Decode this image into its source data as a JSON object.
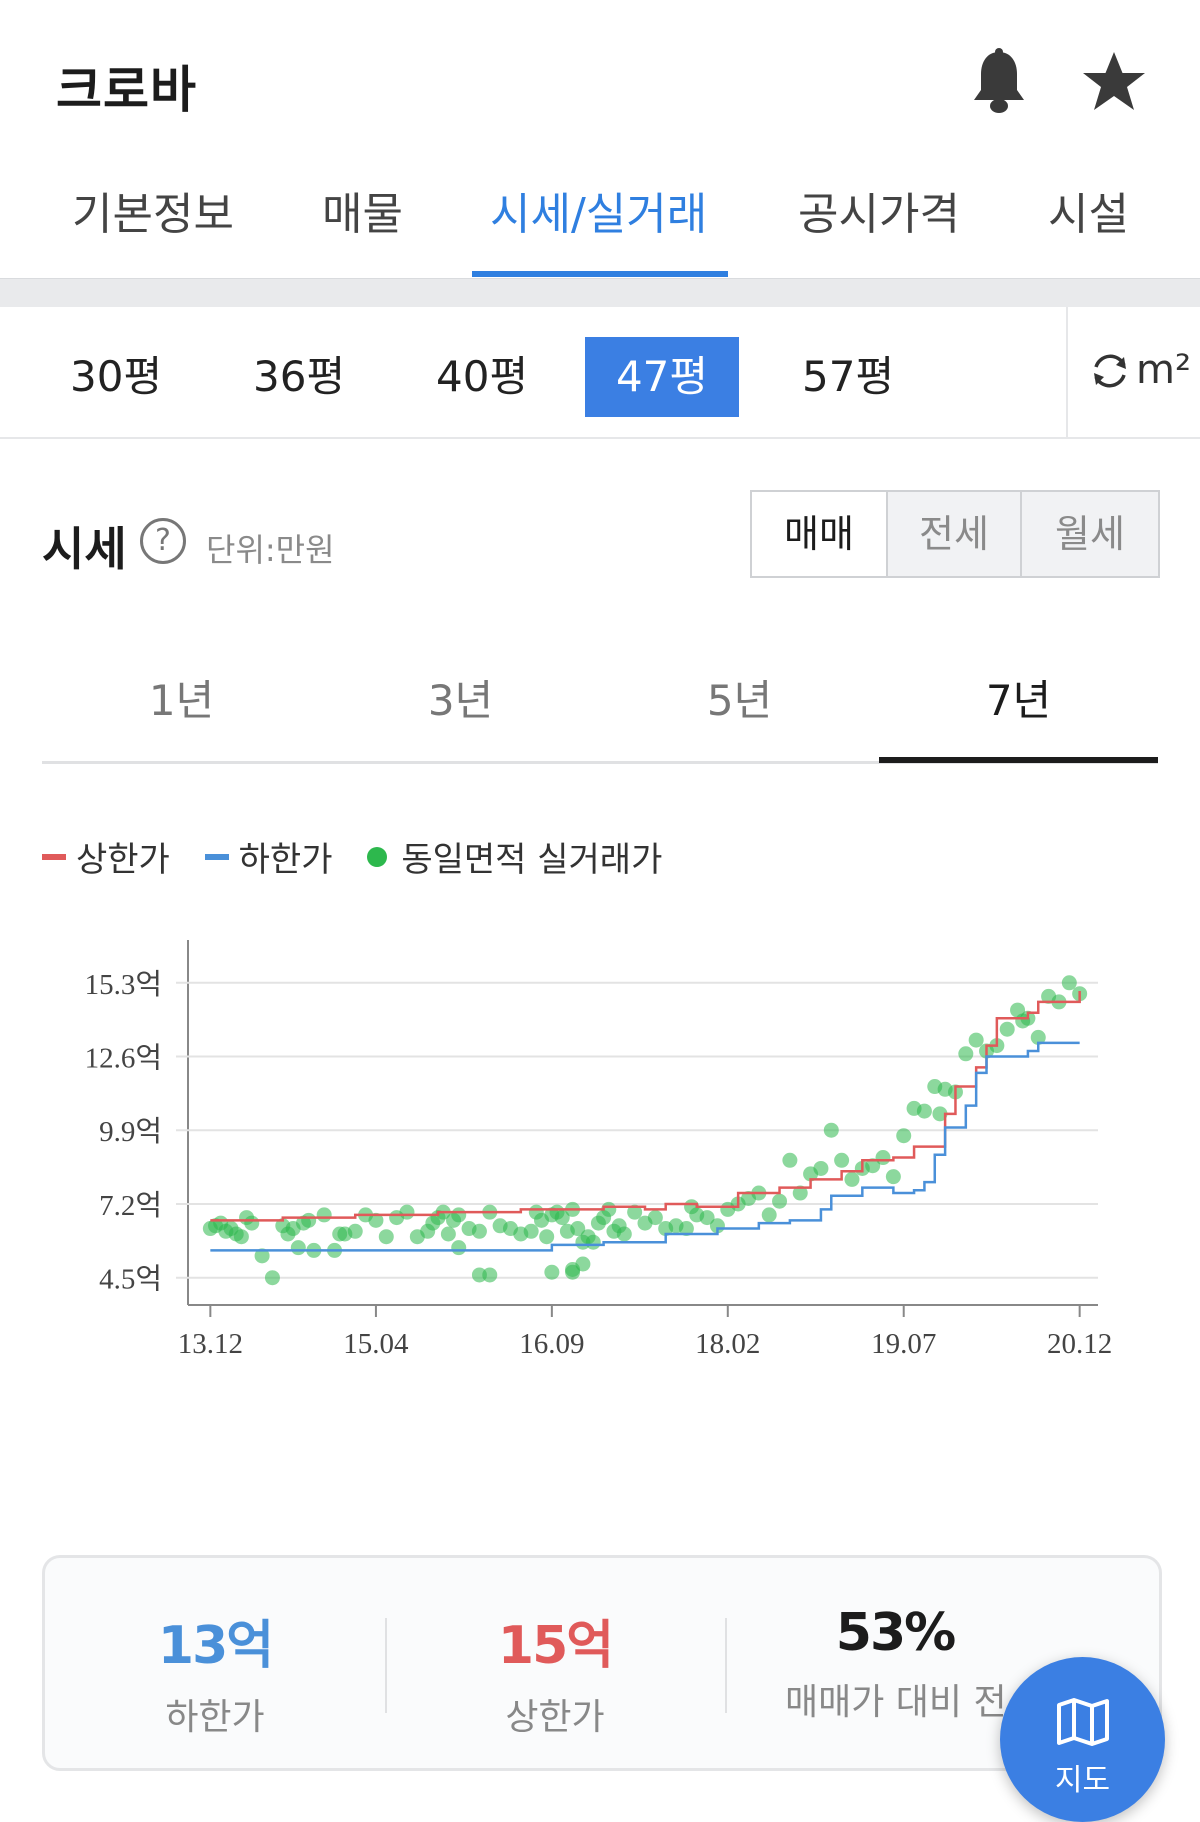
{
  "header": {
    "title": "크로바",
    "icons": [
      "bell-icon",
      "star-icon"
    ]
  },
  "tabs": [
    {
      "label": "기본정보",
      "active": false
    },
    {
      "label": "매물",
      "active": false
    },
    {
      "label": "시세/실거래",
      "active": true
    },
    {
      "label": "공시가격",
      "active": false
    },
    {
      "label": "시설",
      "active": false
    }
  ],
  "sizes": [
    {
      "label": "30평",
      "active": false
    },
    {
      "label": "36평",
      "active": false
    },
    {
      "label": "40평",
      "active": false
    },
    {
      "label": "47평",
      "active": true
    },
    {
      "label": "57평",
      "active": false
    }
  ],
  "unit_toggle": {
    "icon": "refresh-icon",
    "label": "m²"
  },
  "price_section": {
    "title": "시세",
    "unit": "단위:만원",
    "trade_types": [
      {
        "label": "매매",
        "active": true
      },
      {
        "label": "전세",
        "active": false
      },
      {
        "label": "월세",
        "active": false
      }
    ],
    "periods": [
      {
        "label": "1년",
        "active": false
      },
      {
        "label": "3년",
        "active": false
      },
      {
        "label": "5년",
        "active": false
      },
      {
        "label": "7년",
        "active": true
      }
    ]
  },
  "legend": [
    {
      "label": "상한가",
      "marker": "line",
      "color": "#e05a5a"
    },
    {
      "label": "하한가",
      "marker": "line",
      "color": "#4a90d9"
    },
    {
      "label": "동일면적 실거래가",
      "marker": "dot",
      "color": "#2db84d"
    }
  ],
  "chart_data": {
    "type": "line",
    "y_ticks": [
      {
        "value": 4.5,
        "label": "4.5억"
      },
      {
        "value": 7.2,
        "label": "7.2억"
      },
      {
        "value": 9.9,
        "label": "9.9억"
      },
      {
        "value": 12.6,
        "label": "12.6억"
      },
      {
        "value": 15.3,
        "label": "15.3억"
      }
    ],
    "x_ticks": [
      "13.12",
      "15.04",
      "16.09",
      "18.02",
      "19.07",
      "20.12"
    ],
    "x_tick_months": [
      0,
      16,
      33,
      50,
      67,
      84
    ],
    "ylim": [
      3.5,
      16.5
    ],
    "xlim": [
      -1,
      85
    ],
    "series": [
      {
        "name": "상한가",
        "color": "#e05a5a",
        "steps": [
          [
            0,
            6.6
          ],
          [
            7,
            6.7
          ],
          [
            14,
            6.8
          ],
          [
            22,
            6.9
          ],
          [
            30,
            7.0
          ],
          [
            38,
            7.1
          ],
          [
            42,
            7.0
          ],
          [
            44,
            7.2
          ],
          [
            47,
            7.1
          ],
          [
            51,
            7.6
          ],
          [
            55,
            7.8
          ],
          [
            58,
            8.1
          ],
          [
            61,
            8.4
          ],
          [
            63,
            8.8
          ],
          [
            66,
            8.9
          ],
          [
            68,
            9.3
          ],
          [
            71,
            10.5
          ],
          [
            72,
            11.5
          ],
          [
            74,
            12.2
          ],
          [
            75,
            13.0
          ],
          [
            76,
            14.0
          ],
          [
            78,
            14.0
          ],
          [
            79,
            14.2
          ],
          [
            80,
            14.6
          ],
          [
            82,
            14.6
          ],
          [
            84,
            15.0
          ]
        ]
      },
      {
        "name": "하한가",
        "color": "#4a90d9",
        "steps": [
          [
            0,
            5.5
          ],
          [
            30,
            5.5
          ],
          [
            33,
            5.7
          ],
          [
            38,
            5.8
          ],
          [
            44,
            6.1
          ],
          [
            49,
            6.3
          ],
          [
            53,
            6.5
          ],
          [
            56,
            6.6
          ],
          [
            59,
            7.0
          ],
          [
            60,
            7.5
          ],
          [
            63,
            7.8
          ],
          [
            66,
            7.6
          ],
          [
            68,
            7.7
          ],
          [
            69,
            8.0
          ],
          [
            70,
            9.0
          ],
          [
            71,
            10.0
          ],
          [
            73,
            10.8
          ],
          [
            74,
            12.0
          ],
          [
            75,
            12.6
          ],
          [
            76,
            12.6
          ],
          [
            78,
            12.6
          ],
          [
            79,
            12.8
          ],
          [
            80,
            13.1
          ],
          [
            84,
            13.1
          ]
        ]
      }
    ],
    "points": [
      [
        0,
        6.3
      ],
      [
        0.5,
        6.4
      ],
      [
        1,
        6.5
      ],
      [
        1.5,
        6.2
      ],
      [
        2,
        6.3
      ],
      [
        2.5,
        6.1
      ],
      [
        3,
        6.0
      ],
      [
        3.5,
        6.7
      ],
      [
        4,
        6.5
      ],
      [
        5,
        5.3
      ],
      [
        6,
        4.5
      ],
      [
        7,
        6.4
      ],
      [
        7.5,
        6.1
      ],
      [
        8,
        6.3
      ],
      [
        8.5,
        5.6
      ],
      [
        9,
        6.5
      ],
      [
        9.5,
        6.6
      ],
      [
        10,
        5.5
      ],
      [
        11,
        6.8
      ],
      [
        12,
        5.5
      ],
      [
        12.5,
        6.1
      ],
      [
        13,
        6.1
      ],
      [
        14,
        6.2
      ],
      [
        15,
        6.8
      ],
      [
        16,
        6.6
      ],
      [
        17,
        6.0
      ],
      [
        18,
        6.7
      ],
      [
        19,
        6.9
      ],
      [
        20,
        6.0
      ],
      [
        21,
        6.2
      ],
      [
        21.5,
        6.5
      ],
      [
        22,
        6.7
      ],
      [
        22.5,
        6.9
      ],
      [
        23,
        6.1
      ],
      [
        23.5,
        6.6
      ],
      [
        24,
        6.8
      ],
      [
        25,
        6.3
      ],
      [
        26,
        6.2
      ],
      [
        27,
        6.9
      ],
      [
        28,
        6.4
      ],
      [
        29,
        6.3
      ],
      [
        30,
        6.1
      ],
      [
        31,
        6.2
      ],
      [
        31.5,
        6.9
      ],
      [
        32,
        6.6
      ],
      [
        32.5,
        6.0
      ],
      [
        33,
        6.8
      ],
      [
        33.5,
        6.9
      ],
      [
        34,
        6.7
      ],
      [
        34.5,
        6.2
      ],
      [
        35,
        7.0
      ],
      [
        35.5,
        6.3
      ],
      [
        36,
        5.8
      ],
      [
        36.5,
        6.0
      ],
      [
        37,
        5.8
      ],
      [
        37.5,
        6.5
      ],
      [
        38,
        6.7
      ],
      [
        38.5,
        7.0
      ],
      [
        39,
        6.2
      ],
      [
        39.5,
        6.4
      ],
      [
        40,
        6.1
      ],
      [
        41,
        6.9
      ],
      [
        42,
        6.5
      ],
      [
        43,
        6.7
      ],
      [
        44,
        6.3
      ],
      [
        45,
        6.4
      ],
      [
        46,
        6.3
      ],
      [
        46.5,
        7.1
      ],
      [
        47,
        6.8
      ],
      [
        48,
        6.7
      ],
      [
        49,
        6.4
      ],
      [
        50,
        7.0
      ],
      [
        51,
        7.2
      ],
      [
        52,
        7.4
      ],
      [
        53,
        7.6
      ],
      [
        54,
        6.8
      ],
      [
        55,
        7.3
      ],
      [
        56,
        8.8
      ],
      [
        57,
        7.6
      ],
      [
        58,
        8.3
      ],
      [
        59,
        8.5
      ],
      [
        60,
        9.9
      ],
      [
        61,
        8.8
      ],
      [
        62,
        8.1
      ],
      [
        63,
        8.5
      ],
      [
        64,
        8.6
      ],
      [
        65,
        8.9
      ],
      [
        66,
        8.2
      ],
      [
        67,
        9.7
      ],
      [
        68,
        10.7
      ],
      [
        69,
        10.6
      ],
      [
        70,
        11.5
      ],
      [
        70.5,
        10.5
      ],
      [
        71,
        11.4
      ],
      [
        72,
        11.3
      ],
      [
        73,
        12.7
      ],
      [
        74,
        13.2
      ],
      [
        75,
        12.8
      ],
      [
        76,
        13.0
      ],
      [
        77,
        13.6
      ],
      [
        78,
        14.3
      ],
      [
        78.5,
        13.9
      ],
      [
        79,
        14.0
      ],
      [
        80,
        13.3
      ],
      [
        81,
        14.8
      ],
      [
        82,
        14.6
      ],
      [
        83,
        15.3
      ],
      [
        84,
        14.9
      ],
      [
        35,
        4.8
      ],
      [
        24,
        5.6
      ],
      [
        26,
        4.6
      ],
      [
        27,
        4.6
      ],
      [
        33,
        4.7
      ],
      [
        35,
        4.7
      ],
      [
        36,
        5.0
      ]
    ]
  },
  "summary": [
    {
      "value": "13억",
      "label": "하한가",
      "color": "#4a90d9"
    },
    {
      "value": "15억",
      "label": "상한가",
      "color": "#e05a5a"
    },
    {
      "value": "53%",
      "label": "매매가 대비 전",
      "color": "#1c1c1c"
    }
  ],
  "fab": {
    "icon": "map-icon",
    "label": "지도"
  }
}
